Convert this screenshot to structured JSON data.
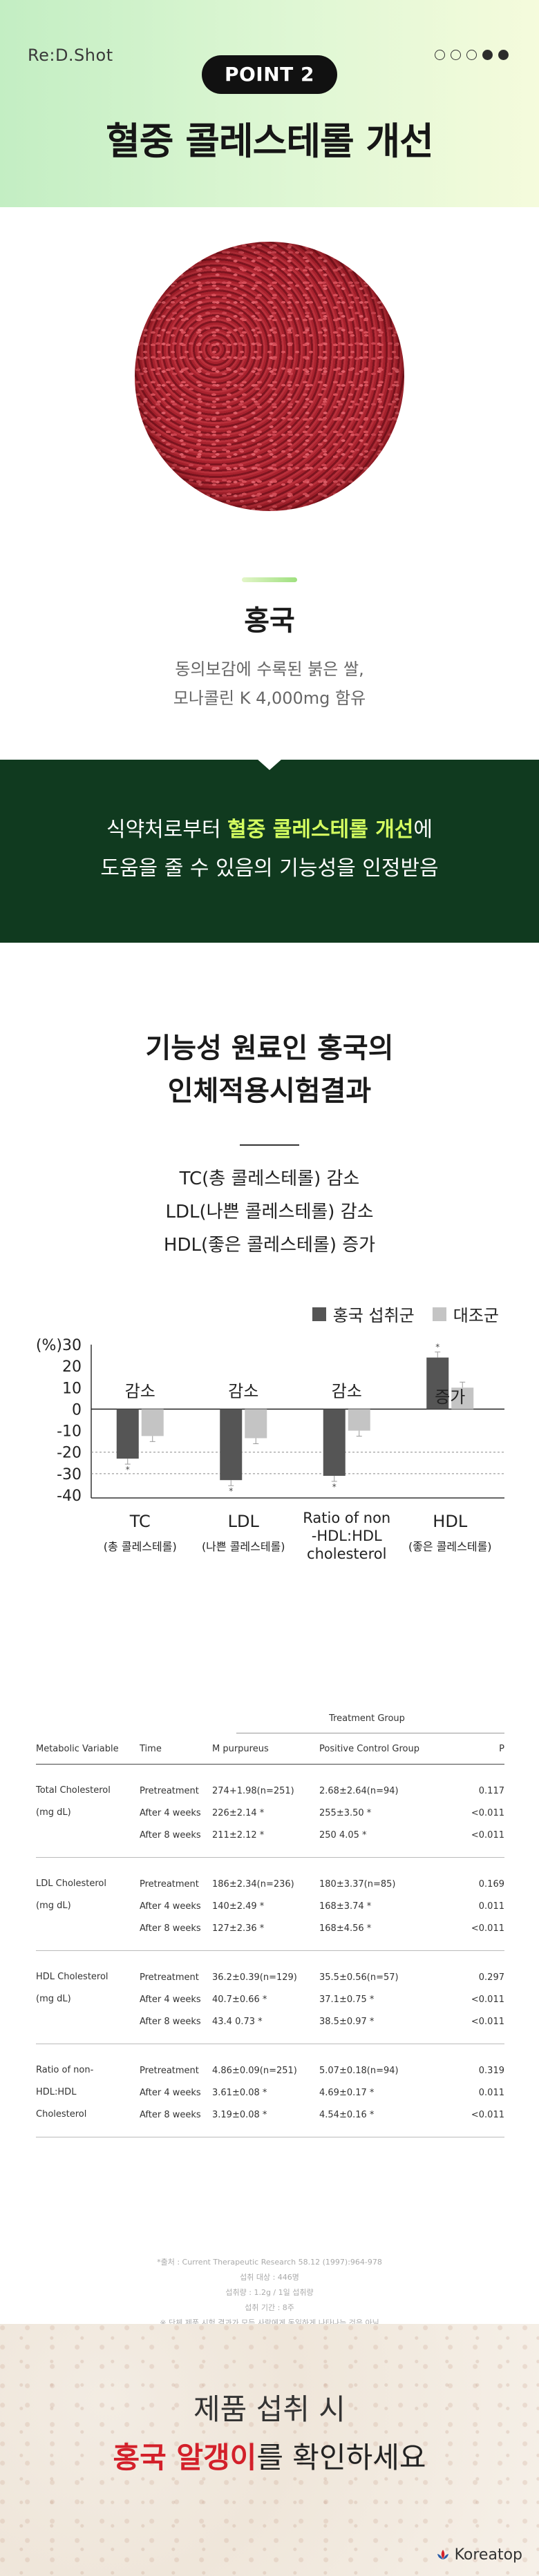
{
  "header": {
    "brand": "Re:D.Shot",
    "point_label": "POINT 2",
    "title": "혈중 콜레스테롤 개선",
    "dots_total": 5,
    "dots_active": [
      3,
      4
    ]
  },
  "ingredient": {
    "name": "홍국",
    "desc_line1": "동의보감에 수록된 붉은 쌀,",
    "desc_line2": "모나콜린 K 4,000mg 함유"
  },
  "banner": {
    "pre": "식약처로부터 ",
    "highlight": "혈중 콜레스테롤 개선",
    "post": "에",
    "line2": "도움을 줄 수 있음의 기능성을 인정받음"
  },
  "results": {
    "title_line1": "기능성 원료인 홍국의",
    "title_line2": "인체적용시험결과",
    "items": [
      "TC(총 콜레스테롤) 감소",
      "LDL(나쁜 콜레스테롤) 감소",
      "HDL(좋은 콜레스테롤) 증가"
    ]
  },
  "chart_data": {
    "type": "bar",
    "y_unit_label": "(%)",
    "ylim": [
      -40,
      30
    ],
    "yticks": [
      30,
      20,
      10,
      0,
      -10,
      -20,
      -30,
      -40
    ],
    "categories": [
      {
        "label": "TC",
        "sub": "(총 콜레스테롤)",
        "annotation": "감소"
      },
      {
        "label": "LDL",
        "sub": "(나쁜 콜레스테롤)",
        "annotation": "감소"
      },
      {
        "label": "Ratio of non-HDL:HDL cholesterol",
        "label_lines": [
          "Ratio of non",
          "-HDL:HDL",
          "cholesterol"
        ],
        "sub": "",
        "annotation": "감소"
      },
      {
        "label": "HDL",
        "sub": "(좋은 콜레스테롤)",
        "annotation": "증가"
      }
    ],
    "series": [
      {
        "name": "홍국 섭취군",
        "color": "#555555",
        "values": [
          -23,
          -33,
          -31,
          24
        ]
      },
      {
        "name": "대조군",
        "color": "#c4c4c4",
        "values": [
          -12.5,
          -13.5,
          -10,
          10
        ]
      }
    ],
    "reference_lines": [
      -20,
      -30
    ],
    "legend_position": "top-right"
  },
  "table": {
    "group_label": "Treatment Group",
    "columns": [
      "Metabolic Variable",
      "Time",
      "M purpureus",
      "Positive Control Group",
      "P"
    ],
    "groups": [
      {
        "variable": [
          "Total Cholesterol",
          "(mg dL)"
        ],
        "rows": [
          [
            "Pretreatment",
            "274+1.98(n=251)",
            "2.68±2.64(n=94)",
            "0.117"
          ],
          [
            "After 4 weeks",
            "226±2.14 *",
            "255±3.50 *",
            "<0.011"
          ],
          [
            "After 8 weeks",
            "211±2.12 *",
            "250  4.05 *",
            "<0.011"
          ]
        ]
      },
      {
        "variable": [
          "LDL Cholesterol",
          "(mg dL)"
        ],
        "rows": [
          [
            "Pretreatment",
            "186±2.34(n=236)",
            "180±3.37(n=85)",
            "0.169"
          ],
          [
            "After 4 weeks",
            "140±2.49 *",
            "168±3.74 *",
            "0.011"
          ],
          [
            "After 8 weeks",
            "127±2.36 *",
            "168±4.56 *",
            "<0.011"
          ]
        ]
      },
      {
        "variable": [
          "HDL Cholesterol",
          "(mg dL)"
        ],
        "rows": [
          [
            "Pretreatment",
            "36.2±0.39(n=129)",
            "35.5±0.56(n=57)",
            "0.297"
          ],
          [
            "After 4 weeks",
            "40.7±0.66 *",
            "37.1±0.75 *",
            "<0.011"
          ],
          [
            "After 8 weeks",
            "43.4  0.73 *",
            "38.5±0.97 *",
            "<0.011"
          ]
        ]
      },
      {
        "variable": [
          "Ratio of non-",
          "HDL:HDL",
          "Cholesterol"
        ],
        "rows": [
          [
            "Pretreatment",
            "4.86±0.09(n=251)",
            "5.07±0.18(n=94)",
            "0.319"
          ],
          [
            "After 4 weeks",
            "3.61±0.08 *",
            "4.69±0.17 *",
            "0.011"
          ],
          [
            "After 8 weeks",
            "3.19±0.08 *",
            "4.54±0.16 *",
            "<0.011"
          ]
        ]
      }
    ]
  },
  "notes": [
    "*출처 : Current Therapeutic Research 58.12 (1997):964-978",
    "섭취 대상 : 446명",
    "섭취량 : 1.2g / 1일 섭취량",
    "섭취 기간 : 8주",
    "※ 단체 제품 시험 결과가 모든 사람에게 동일하게 나타나는 것은 아님"
  ],
  "footer": {
    "line1": "제품 섭취 시",
    "line2_red": "홍국 알갱이",
    "line2_rest": "를 확인하세요",
    "logo": "Koreatop"
  }
}
